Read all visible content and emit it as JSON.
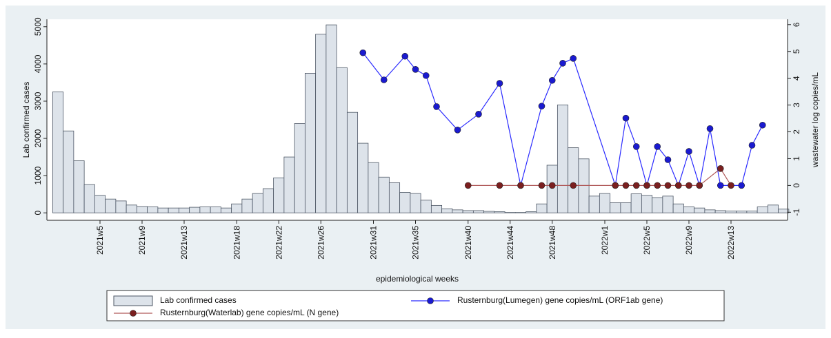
{
  "chart_data": {
    "type": "combo",
    "x_label": "epidemiological weeks",
    "y_label": "Lab confirmed cases",
    "y2_label": "wastewater log copies/mL",
    "legend": "bottom",
    "categories": [
      null,
      null,
      null,
      null,
      "2021w5",
      null,
      null,
      null,
      "2021w9",
      null,
      null,
      null,
      "2021w13",
      null,
      null,
      null,
      null,
      "2021w18",
      null,
      null,
      null,
      "2021w22",
      null,
      null,
      null,
      "2021w26",
      null,
      null,
      null,
      null,
      "2021w31",
      null,
      null,
      null,
      "2021w35",
      null,
      null,
      null,
      null,
      "2021w40",
      null,
      null,
      null,
      "2021w44",
      null,
      null,
      null,
      "2021w48",
      null,
      null,
      null,
      null,
      "2022w1",
      null,
      null,
      null,
      "2022w5",
      null,
      null,
      null,
      "2022w9",
      null,
      null,
      null,
      "2022w13",
      null,
      null,
      null,
      null,
      null
    ],
    "ylim": [
      -200,
      5200
    ],
    "yticks": [
      0,
      1000,
      2000,
      3000,
      4000,
      5000
    ],
    "y2lim": [
      -1.3,
      6.2
    ],
    "y2ticks": [
      -1,
      0,
      1,
      2,
      3,
      4,
      5,
      6
    ],
    "series": [
      {
        "name": "Lab confirmed cases",
        "type": "bar",
        "color": "#dde3ea",
        "edge_color": "#4b5563",
        "values": [
          3250,
          2200,
          1400,
          760,
          470,
          370,
          320,
          210,
          170,
          160,
          130,
          130,
          130,
          150,
          160,
          160,
          130,
          240,
          370,
          520,
          650,
          940,
          1500,
          2400,
          3750,
          4800,
          5050,
          3900,
          2700,
          1870,
          1350,
          960,
          810,
          550,
          520,
          340,
          200,
          110,
          80,
          60,
          60,
          40,
          30,
          10,
          10,
          30,
          240,
          1280,
          2900,
          1750,
          1450,
          450,
          520,
          270,
          270,
          510,
          470,
          410,
          450,
          240,
          160,
          130,
          80,
          60,
          50,
          50,
          50,
          160,
          210,
          100
        ]
      },
      {
        "name": "Rusternburg(Lumegen) gene copies/mL (ORF1ab gene)",
        "type": "line",
        "axis": "y2",
        "color": "#2a2aff",
        "marker_color": "#1a1ad0",
        "values": [
          null,
          null,
          null,
          null,
          null,
          null,
          null,
          null,
          null,
          null,
          null,
          null,
          null,
          null,
          null,
          null,
          null,
          null,
          null,
          null,
          null,
          null,
          null,
          null,
          null,
          null,
          null,
          null,
          null,
          4.95,
          null,
          3.94,
          null,
          4.82,
          4.33,
          4.1,
          2.94,
          null,
          2.07,
          null,
          2.66,
          null,
          3.81,
          null,
          0,
          null,
          2.96,
          3.92,
          4.56,
          4.74,
          null,
          null,
          null,
          0,
          2.51,
          1.45,
          0,
          1.45,
          0.96,
          0,
          1.27,
          0,
          2.12,
          0,
          null,
          0,
          1.5,
          2.25,
          null,
          null
        ]
      },
      {
        "name": "Rusternburg(Waterlab) gene copies/mL (N gene)",
        "type": "line",
        "axis": "y2",
        "color": "#b05a5a",
        "marker_color": "#7a1f1f",
        "values": [
          null,
          null,
          null,
          null,
          null,
          null,
          null,
          null,
          null,
          null,
          null,
          null,
          null,
          null,
          null,
          null,
          null,
          null,
          null,
          null,
          null,
          null,
          null,
          null,
          null,
          null,
          null,
          null,
          null,
          null,
          null,
          null,
          null,
          null,
          null,
          null,
          null,
          null,
          null,
          0,
          null,
          null,
          0,
          null,
          0,
          null,
          0,
          0,
          null,
          0,
          null,
          null,
          null,
          0,
          0,
          0,
          0,
          0,
          0,
          0,
          0,
          0,
          null,
          0.63,
          0,
          null,
          null,
          null,
          null,
          null
        ]
      }
    ]
  }
}
